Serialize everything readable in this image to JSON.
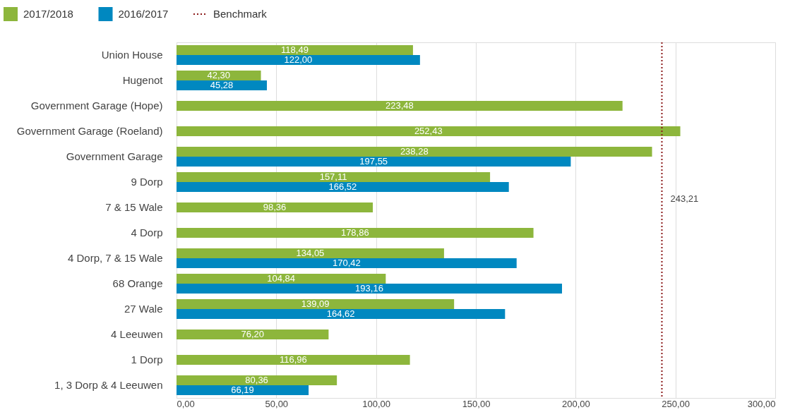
{
  "chart_data": {
    "type": "bar",
    "orientation": "horizontal",
    "categories": [
      "Union House",
      "Hugenot",
      "Government Garage (Hope)",
      "Government Garage (Roeland)",
      "Government Garage",
      "9 Dorp",
      "7 & 15 Wale",
      "4 Dorp",
      "4 Dorp, 7 & 15 Wale",
      "68 Orange",
      "27 Wale",
      "4 Leeuwen",
      "1 Dorp",
      "1, 3 Dorp & 4 Leeuwen"
    ],
    "series": [
      {
        "name": "2017/2018",
        "color": "#8db63c",
        "values": [
          118.49,
          42.3,
          223.48,
          252.43,
          238.28,
          157.11,
          98.36,
          178.86,
          134.05,
          104.84,
          139.09,
          76.2,
          116.96,
          80.36
        ],
        "value_labels": [
          "118,49",
          "42,30",
          "223,48",
          "252,43",
          "238,28",
          "157,11",
          "98,36",
          "178,86",
          "134,05",
          "104,84",
          "139,09",
          "76,20",
          "116,96",
          "80,36"
        ]
      },
      {
        "name": "2016/2017",
        "color": "#0088c0",
        "values": [
          122.0,
          45.28,
          null,
          null,
          197.55,
          166.52,
          null,
          null,
          170.42,
          193.16,
          164.62,
          null,
          null,
          66.19
        ],
        "value_labels": [
          "122,00",
          "45,28",
          null,
          null,
          "197,55",
          "166,52",
          null,
          null,
          "170,42",
          "193,16",
          "164,62",
          null,
          null,
          "66,19"
        ]
      }
    ],
    "xlim": [
      0,
      300
    ],
    "xticks": [
      {
        "value": 0,
        "label": "0,00"
      },
      {
        "value": 50,
        "label": "50,00"
      },
      {
        "value": 100,
        "label": "100,00"
      },
      {
        "value": 150,
        "label": "150,00"
      },
      {
        "value": 200,
        "label": "200,00"
      },
      {
        "value": 250,
        "label": "250,00"
      },
      {
        "value": 300,
        "label": "300,00"
      }
    ],
    "ref_lines": [
      {
        "axis": "x",
        "value": 243.21,
        "label": "Benchmark",
        "color": "#8b1a1a",
        "line_style": "dotted"
      }
    ],
    "annotations": [
      {
        "text": "243,21",
        "x": 243.21
      }
    ],
    "grid": "x",
    "legend": "top left"
  }
}
